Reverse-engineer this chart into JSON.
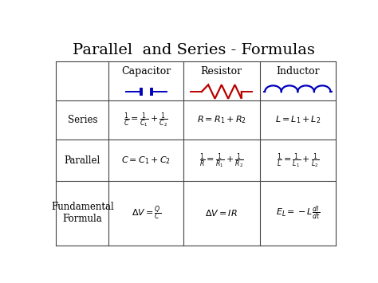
{
  "title": "Parallel  and Series - Formulas",
  "title_fontsize": 14,
  "background_color": "#ffffff",
  "col_headers": [
    "Capacitor",
    "Resistor",
    "Inductor"
  ],
  "row_headers": [
    "Series",
    "Parallel",
    "Fundamental\nFormula"
  ],
  "formulas": {
    "series_cap": "$\\frac{1}{C} = \\frac{1}{C_1} + \\frac{1}{C_2}$",
    "series_res": "$R = R_1 + R_2$",
    "series_ind": "$L = L_1 + L_2$",
    "parallel_cap": "$C = C_1 + C_2$",
    "parallel_res": "$\\frac{1}{R} = \\frac{1}{R_1} + \\frac{1}{R_2}$",
    "parallel_ind": "$\\frac{1}{L} = \\frac{1}{L_1} + \\frac{1}{L_2}$",
    "fund_cap": "$\\Delta V = \\frac{Q}{C}$",
    "fund_res": "$\\Delta V = IR$",
    "fund_ind": "$E_L = -L\\frac{dI}{dt}$"
  },
  "capacitor_color": "#0000bb",
  "resistor_color": "#bb0000",
  "inductor_color": "#0000bb",
  "grid_color": "#444444",
  "text_color": "#000000",
  "tl": 0.03,
  "tr": 0.985,
  "tt": 0.875,
  "tb": 0.03,
  "col_divs": [
    0.03,
    0.21,
    0.465,
    0.725,
    0.985
  ],
  "row_divs": [
    0.875,
    0.695,
    0.515,
    0.325,
    0.03
  ]
}
